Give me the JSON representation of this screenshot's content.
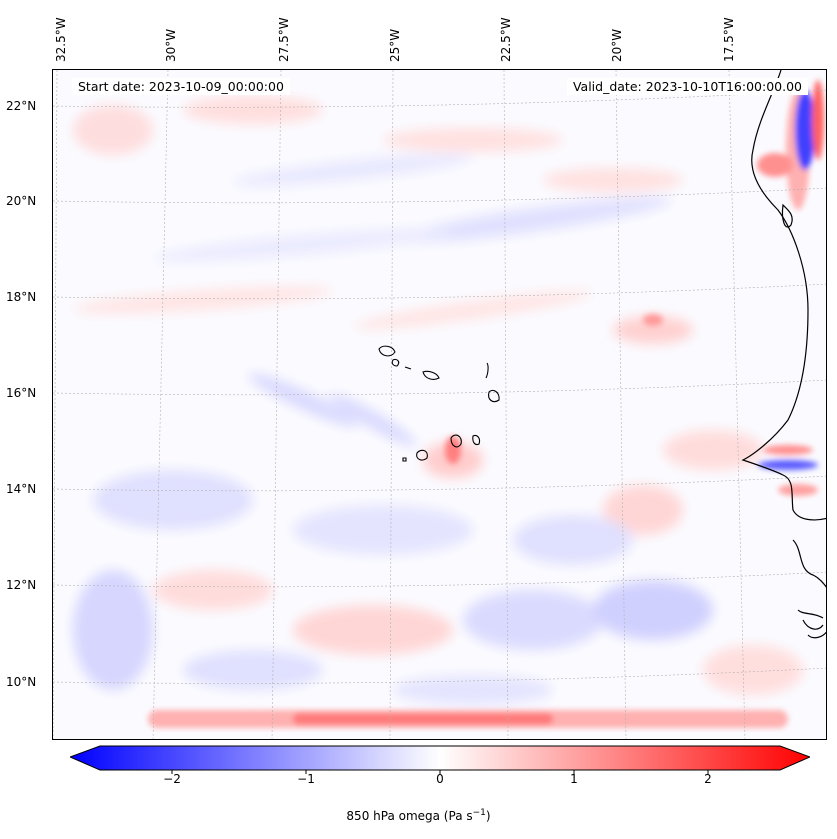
{
  "map": {
    "title_start": "Start date: 2023-10-09_00:00:00",
    "title_valid": "Valid_date: 2023-10-10T16:00:00.00",
    "lon_labels": [
      "32.5°W",
      "30°W",
      "27.5°W",
      "25°W",
      "22.5°W",
      "20°W",
      "17.5°W"
    ],
    "lat_labels": [
      "22°N",
      "20°N",
      "18°N",
      "16°N",
      "14°N",
      "12°N",
      "10°N"
    ],
    "colors": {
      "coast": "#000000",
      "neg": "#0000ff",
      "pos": "#ff0000",
      "grid": "#b0b0b0"
    }
  },
  "colorbar": {
    "label_prefix": "850 hPa omega (Pa s",
    "label_exp": "−1",
    "label_suffix": ")",
    "ticks": [
      "−2",
      "−1",
      "0",
      "1",
      "2"
    ],
    "min": -2.7,
    "max": 2.7
  }
}
